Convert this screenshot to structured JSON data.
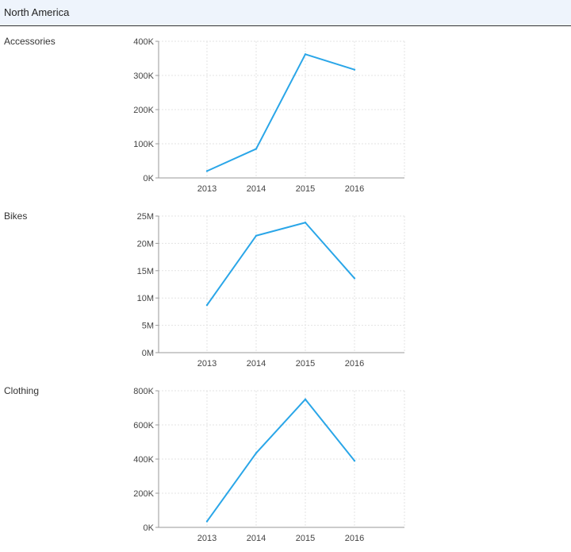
{
  "header": {
    "title": "North America"
  },
  "chart_data": [
    {
      "type": "line",
      "label": "Accessories",
      "categories": [
        "2013",
        "2014",
        "2015",
        "2016"
      ],
      "values": [
        20000,
        85000,
        362000,
        317000
      ],
      "ylim": [
        0,
        400000
      ],
      "yticks": [
        0,
        100000,
        200000,
        300000,
        400000
      ],
      "ytick_labels": [
        "0K",
        "100K",
        "200K",
        "300K",
        "400K"
      ],
      "grid": true,
      "color": "#2aa6e8"
    },
    {
      "type": "line",
      "label": "Bikes",
      "categories": [
        "2013",
        "2014",
        "2015",
        "2016"
      ],
      "values": [
        8700000,
        21400000,
        23800000,
        13600000
      ],
      "ylim": [
        0,
        25000000
      ],
      "yticks": [
        0,
        5000000,
        10000000,
        15000000,
        20000000,
        25000000
      ],
      "ytick_labels": [
        "0M",
        "5M",
        "10M",
        "15M",
        "20M",
        "25M"
      ],
      "grid": true,
      "color": "#2aa6e8"
    },
    {
      "type": "line",
      "label": "Clothing",
      "categories": [
        "2013",
        "2014",
        "2015",
        "2016"
      ],
      "values": [
        35000,
        435000,
        750000,
        390000
      ],
      "ylim": [
        0,
        800000
      ],
      "yticks": [
        0,
        200000,
        400000,
        600000,
        800000
      ],
      "ytick_labels": [
        "0K",
        "200K",
        "400K",
        "600K",
        "800K"
      ],
      "grid": true,
      "color": "#2aa6e8"
    }
  ]
}
